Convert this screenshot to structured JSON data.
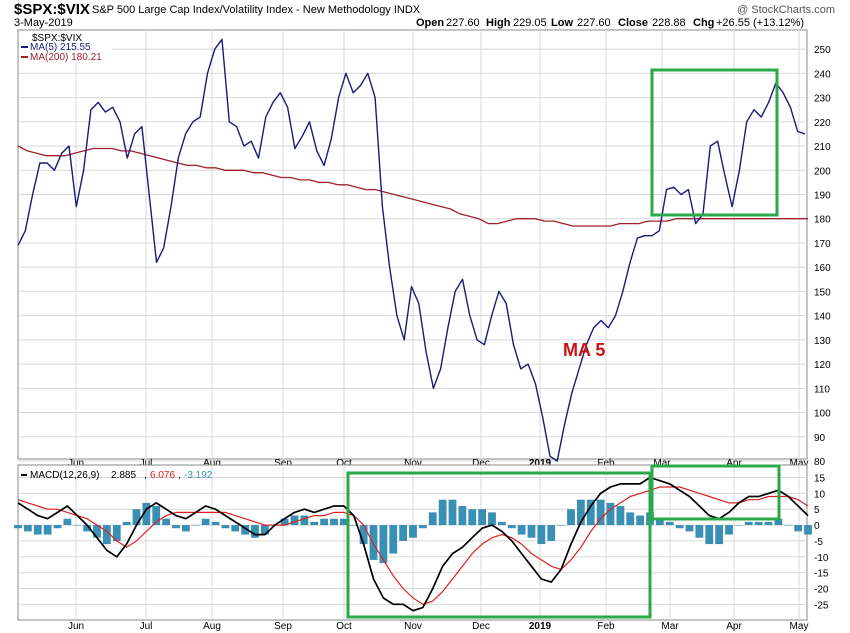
{
  "header": {
    "symbol": "$SPX:$VIX",
    "name": "S&P 500 Large Cap Index/Volatility Index - New Methodology  INDX",
    "watermark": "@ StockCharts.com",
    "date": "3-May-2019",
    "open_label": "Open",
    "open_value": "227.60",
    "high_label": "High",
    "high_value": "229.05",
    "low_label": "Low",
    "low_value": "227.60",
    "close_label": "Close",
    "close_value": "228.88",
    "chg_label": "Chg",
    "chg_value": "+26.55 (+13.12%)"
  },
  "legend": {
    "symbol": "$SPX:$VIX",
    "ma5": "MA(5) 215.55",
    "ma200": "MA(200) 180.21"
  },
  "annotation": "MA 5",
  "macd_legend": {
    "label": "MACD(12,26,9)",
    "macd": "2.885",
    "signal": "6.076",
    "hist": "-3.192"
  },
  "colors": {
    "ma5": "#1a1a7a",
    "ma200": "#a0202a",
    "macd": "#000000",
    "signal": "#e02020",
    "histogram": "#3a8fb5",
    "box": "#2aa84a",
    "annotation": "#cc1111",
    "grid": "#d8d8d8"
  },
  "chart_data": [
    {
      "type": "line",
      "title": "$SPX:$VIX",
      "x_tick_labels": [
        "Jun",
        "Jul",
        "Aug",
        "Sep",
        "Oct",
        "Nov",
        "Dec",
        "2019",
        "Feb",
        "Mar",
        "Apr",
        "May"
      ],
      "y_tick_labels": [
        "80",
        "90",
        "100",
        "110",
        "120",
        "130",
        "140",
        "150",
        "160",
        "170",
        "180",
        "190",
        "200",
        "210",
        "220",
        "230",
        "240",
        "250"
      ],
      "ylim": [
        80,
        255
      ],
      "grid": true,
      "series": [
        {
          "name": "MA(5) 215.55",
          "values": [
            169,
            175,
            190,
            203,
            203,
            200,
            207,
            210,
            185,
            200,
            225,
            228,
            224,
            226,
            220,
            205,
            215,
            218,
            190,
            162,
            168,
            185,
            205,
            215,
            220,
            222,
            240,
            250,
            254,
            220,
            218,
            210,
            212,
            205,
            222,
            228,
            232,
            226,
            209,
            214,
            220,
            208,
            202,
            213,
            230,
            240,
            232,
            235,
            240,
            230,
            185,
            160,
            140,
            130,
            152,
            145,
            125,
            110,
            118,
            135,
            150,
            155,
            140,
            130,
            128,
            140,
            150,
            145,
            128,
            118,
            120,
            112,
            98,
            82,
            80,
            95,
            108,
            118,
            128,
            135,
            138,
            135,
            140,
            150,
            162,
            172,
            173,
            173,
            175,
            192,
            193,
            190,
            192,
            178,
            182,
            210,
            212,
            198,
            185,
            200,
            220,
            225,
            222,
            228,
            236,
            232,
            226,
            216,
            215
          ]
        },
        {
          "name": "MA(200) 180.21",
          "values": [
            210,
            208,
            207,
            206,
            206,
            206,
            207,
            208,
            209,
            209,
            209,
            208,
            208,
            207,
            206,
            205,
            204,
            203,
            202,
            202,
            201,
            201,
            200,
            200,
            200,
            199,
            199,
            198,
            197,
            197,
            196,
            196,
            195,
            195,
            194,
            194,
            193,
            192,
            192,
            191,
            190,
            189,
            188,
            187,
            186,
            185,
            184,
            182,
            181,
            180,
            178,
            178,
            179,
            180,
            180,
            180,
            179,
            179,
            178,
            177,
            177,
            177,
            177,
            177,
            178,
            178,
            178,
            179,
            179,
            179,
            180,
            180,
            180,
            180,
            180,
            180,
            180,
            180,
            180,
            180,
            180,
            180,
            180,
            180,
            180
          ]
        }
      ]
    },
    {
      "type": "line",
      "title": "MACD(12,26,9)",
      "x_tick_labels": [
        "Jun",
        "Jul",
        "Aug",
        "Sep",
        "Oct",
        "Nov",
        "Dec",
        "2019",
        "Feb",
        "Mar",
        "Apr",
        "May"
      ],
      "y_tick_labels": [
        "-25",
        "-20",
        "-15",
        "-10",
        "-5",
        "0",
        "5",
        "10",
        "15"
      ],
      "ylim": [
        -29,
        18
      ],
      "grid": true,
      "series": [
        {
          "name": "MACD",
          "values": [
            7,
            5,
            3,
            2,
            4,
            6,
            3,
            0,
            -4,
            -8,
            -10,
            -6,
            0,
            5,
            7,
            5,
            3,
            2,
            4,
            6,
            5,
            3,
            1,
            -1,
            -3,
            -3,
            0,
            2,
            4,
            5,
            4,
            5,
            6,
            6,
            3,
            -6,
            -17,
            -23,
            -25,
            -25,
            -27,
            -26,
            -20,
            -13,
            -9,
            -7,
            -4,
            -1,
            0,
            -2,
            -5,
            -9,
            -13,
            -17,
            -18,
            -14,
            -6,
            1,
            6,
            10,
            12,
            13,
            13,
            13,
            15,
            14,
            13,
            11,
            9,
            6,
            3,
            2,
            4,
            7,
            9,
            9,
            10,
            11,
            9,
            6,
            3
          ]
        },
        {
          "name": "Signal",
          "values": [
            8,
            7,
            6,
            5,
            5,
            4,
            3,
            2,
            0,
            -2,
            -5,
            -7,
            -5,
            -2,
            1,
            3,
            4,
            4,
            4,
            4,
            4,
            4,
            3,
            2,
            1,
            0,
            0,
            0,
            1,
            2,
            3,
            3,
            4,
            4,
            3,
            0,
            -6,
            -11,
            -16,
            -20,
            -23,
            -25,
            -24,
            -21,
            -17,
            -13,
            -9,
            -6,
            -4,
            -3,
            -4,
            -6,
            -9,
            -11,
            -13,
            -14,
            -11,
            -7,
            -2,
            2,
            5,
            7,
            9,
            10,
            11,
            12,
            12,
            12,
            11,
            10,
            9,
            8,
            7,
            7,
            8,
            8,
            9,
            9,
            9,
            8,
            6
          ]
        },
        {
          "name": "Histogram",
          "values": [
            -1,
            -2,
            -3,
            -3,
            -1,
            2,
            0,
            -2,
            -4,
            -6,
            -5,
            1,
            5,
            7,
            6,
            2,
            -1,
            -2,
            0,
            2,
            1,
            -1,
            -2,
            -3,
            -4,
            -3,
            0,
            2,
            3,
            3,
            1,
            2,
            2,
            2,
            0,
            -6,
            -11,
            -12,
            -9,
            -5,
            -4,
            -1,
            4,
            8,
            8,
            6,
            5,
            5,
            4,
            1,
            -1,
            -3,
            -4,
            -6,
            -5,
            0,
            5,
            8,
            8,
            8,
            7,
            6,
            4,
            3,
            4,
            2,
            1,
            -1,
            -2,
            -4,
            -6,
            -6,
            -3,
            0,
            1,
            1,
            1,
            2,
            0,
            -2,
            -3
          ]
        }
      ]
    }
  ]
}
